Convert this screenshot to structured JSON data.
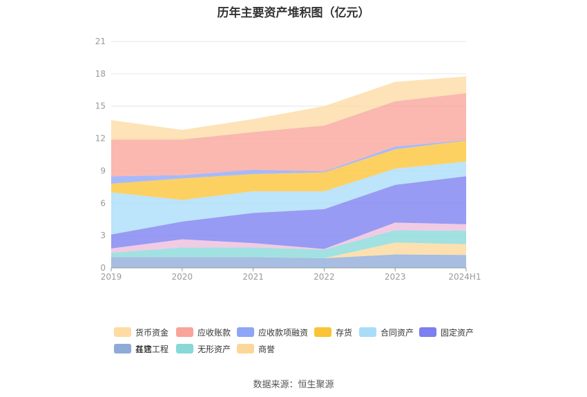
{
  "title": "历年主要资产堆积图（亿元）",
  "source": "数据来源：恒生聚源",
  "chart_data": {
    "type": "area",
    "stacked": true,
    "categories": [
      "2019",
      "2020",
      "2021",
      "2022",
      "2023",
      "2024H1"
    ],
    "ylim": [
      0,
      21
    ],
    "yticks": [
      0,
      3,
      6,
      9,
      12,
      15,
      18,
      21
    ],
    "grid": true,
    "legend_position": "bottom",
    "series": [
      {
        "name": "其它",
        "color": "#8eabd8",
        "values": [
          1.0,
          1.0,
          1.0,
          0.9,
          1.25,
          1.2
        ]
      },
      {
        "name": "商誉",
        "color": "#fdd79a",
        "values": [
          0.0,
          0.0,
          0.0,
          0.0,
          1.1,
          1.0
        ]
      },
      {
        "name": "无形资产",
        "color": "#88d8d8",
        "values": [
          0.4,
          0.9,
          0.9,
          0.8,
          1.15,
          1.25
        ]
      },
      {
        "name": "在建工程",
        "color": "#edbcdd",
        "values": [
          0.4,
          0.75,
          0.4,
          0.05,
          0.7,
          0.6
        ]
      },
      {
        "name": "固定资产",
        "color": "#7b7ff0",
        "values": [
          1.3,
          1.65,
          2.8,
          3.7,
          3.5,
          4.45
        ]
      },
      {
        "name": "合同资产",
        "color": "#a9dcf8",
        "values": [
          3.9,
          2.0,
          2.0,
          1.65,
          1.5,
          1.35
        ]
      },
      {
        "name": "存货",
        "color": "#fbc436",
        "values": [
          0.8,
          2.0,
          1.6,
          1.75,
          1.8,
          1.95
        ]
      },
      {
        "name": "应收款项融资",
        "color": "#8fa5f8",
        "values": [
          0.7,
          0.3,
          0.4,
          0.1,
          0.25,
          0.05
        ]
      },
      {
        "name": "应收账款",
        "color": "#f9a49a",
        "values": [
          3.4,
          3.3,
          3.5,
          4.25,
          4.2,
          4.35
        ]
      },
      {
        "name": "货币资金",
        "color": "#fddba3",
        "values": [
          1.8,
          0.9,
          1.2,
          1.8,
          1.8,
          1.55
        ]
      }
    ],
    "legend_order": [
      "货币资金",
      "应收账款",
      "应收款项融资",
      "存货",
      "合同资产",
      "固定资产",
      "在建工程",
      "无形资产",
      "商誉",
      "其它"
    ]
  }
}
